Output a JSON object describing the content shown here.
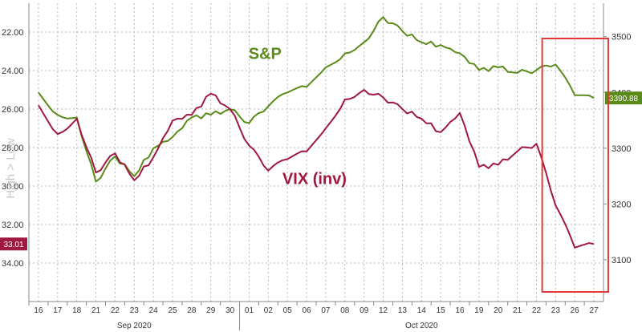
{
  "chart_data": {
    "type": "line",
    "left_axis": {
      "label": "High > Low",
      "inverted": true,
      "range": [
        20.5,
        36.0
      ],
      "tick_labels": [
        "22.00",
        "24.00",
        "26.00",
        "28.00",
        "30.00",
        "32.00",
        "34.00"
      ]
    },
    "right_axis": {
      "range": [
        3025,
        3560
      ],
      "tick_labels": [
        "3500",
        "3400",
        "3300",
        "3200",
        "3100"
      ]
    },
    "x_axis": {
      "dates": [
        "16",
        "17",
        "18",
        "21",
        "22",
        "23",
        "24",
        "25",
        "28",
        "29",
        "30",
        "01",
        "02",
        "05",
        "06",
        "07",
        "08",
        "09",
        "12",
        "13",
        "14",
        "15",
        "16",
        "19",
        "20",
        "21",
        "22",
        "23",
        "26",
        "27"
      ],
      "months": [
        {
          "label": "Sep 2020",
          "start_index": 0
        },
        {
          "label": "Oct 2020",
          "start_index": 11
        }
      ]
    },
    "series": [
      {
        "name": "S&P",
        "axis": "right",
        "color": "#5a8a1a",
        "last_value_label": "3390.88",
        "values": [
          3400,
          3360,
          3355,
          3240,
          3285,
          3250,
          3300,
          3320,
          3355,
          3360,
          3370,
          3345,
          3375,
          3400,
          3410,
          3445,
          3470,
          3490,
          3535,
          3510,
          3490,
          3485,
          3470,
          3440,
          3445,
          3435,
          3440,
          3450,
          3395,
          3390
        ]
      },
      {
        "name": "VIX (inv)",
        "axis": "left",
        "color": "#a01840",
        "last_value_label": "33.01",
        "values": [
          25.8,
          27.3,
          26.5,
          29.3,
          28.3,
          29.7,
          28.5,
          26.6,
          26.3,
          25.2,
          26.0,
          27.9,
          29.2,
          28.6,
          28.2,
          27.0,
          25.5,
          25.0,
          25.4,
          26.0,
          26.5,
          27.2,
          26.2,
          29.0,
          28.9,
          28.2,
          27.8,
          31.0,
          33.2,
          33.01
        ]
      }
    ],
    "annotations": {
      "highlight_box": {
        "from_index": 27,
        "to_index": 29,
        "color": "#e23a3a"
      }
    }
  }
}
